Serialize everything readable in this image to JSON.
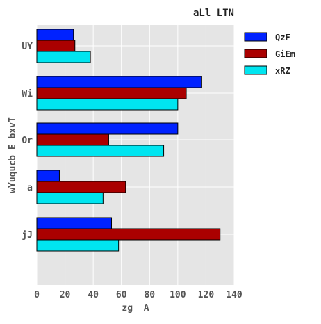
{
  "chart_data": {
    "type": "bar",
    "orientation": "horizontal",
    "title": "aLl LTN",
    "xlabel": "zg  A",
    "ylabel": "wYuqucb E bxvT",
    "categories": [
      "UY",
      "Wi",
      "Or",
      "a",
      "jJ"
    ],
    "xlim": [
      0,
      140
    ],
    "xticks": [
      0,
      20,
      40,
      60,
      80,
      100,
      120,
      140
    ],
    "grid": true,
    "legend_position": "top-right outside",
    "series": [
      {
        "name": "QzF",
        "color": "#0022ff",
        "values": [
          26,
          117,
          100,
          16,
          53
        ]
      },
      {
        "name": "GiEm",
        "color": "#aa0000",
        "values": [
          27,
          106,
          51,
          63,
          130
        ]
      },
      {
        "name": "xRZ",
        "color": "#00e5f0",
        "values": [
          38,
          100,
          90,
          47,
          58
        ]
      }
    ]
  }
}
